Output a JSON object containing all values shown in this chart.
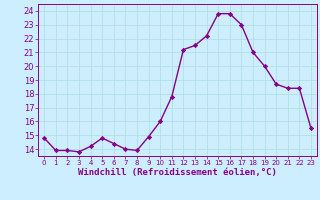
{
  "x": [
    0,
    1,
    2,
    3,
    4,
    5,
    6,
    7,
    8,
    9,
    10,
    11,
    12,
    13,
    14,
    15,
    16,
    17,
    18,
    19,
    20,
    21,
    22,
    23
  ],
  "y": [
    14.8,
    13.9,
    13.9,
    13.8,
    14.2,
    14.8,
    14.4,
    14.0,
    13.9,
    14.9,
    16.0,
    17.8,
    21.2,
    21.5,
    22.2,
    23.8,
    23.8,
    23.0,
    21.0,
    20.0,
    18.7,
    18.4,
    18.4,
    15.5
  ],
  "line_color": "#880088",
  "marker": "D",
  "marker_size": 2.2,
  "linewidth": 1.0,
  "xlabel": "Windchill (Refroidissement éolien,°C)",
  "xlabel_fontsize": 6.5,
  "bg_color": "#cceeff",
  "grid_color": "#aadddd",
  "tick_color": "#880088",
  "ylim": [
    13.5,
    24.5
  ],
  "xlim": [
    -0.5,
    23.5
  ],
  "yticks": [
    14,
    15,
    16,
    17,
    18,
    19,
    20,
    21,
    22,
    23,
    24
  ],
  "xticks": [
    0,
    1,
    2,
    3,
    4,
    5,
    6,
    7,
    8,
    9,
    10,
    11,
    12,
    13,
    14,
    15,
    16,
    17,
    18,
    19,
    20,
    21,
    22,
    23
  ],
  "xtick_fontsize": 5.0,
  "ytick_fontsize": 6.0,
  "spine_color": "#880088"
}
